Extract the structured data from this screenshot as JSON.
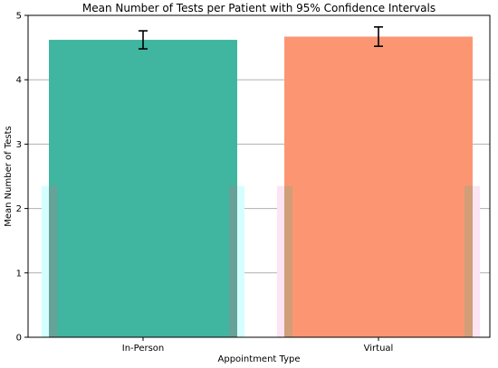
{
  "chart_data": {
    "type": "bar",
    "title": "Mean Number of Tests per Patient with 95% Confidence Intervals",
    "xlabel": "Appointment Type",
    "ylabel": "Mean Number of Tests",
    "categories": [
      "In-Person",
      "Virtual"
    ],
    "values": [
      4.62,
      4.67
    ],
    "ci_lower": [
      4.48,
      4.52
    ],
    "ci_upper": [
      4.76,
      4.82
    ],
    "ylim": [
      0,
      5
    ],
    "yticks": [
      "0",
      "1",
      "2",
      "3",
      "4",
      "5"
    ],
    "grid": "horizontal",
    "colors": {
      "bars": [
        "#40b5a0",
        "#fc9672"
      ],
      "background_bands": [
        "#d4ffff",
        "#fde4f3"
      ],
      "background_overlap": [
        "#6f9f98",
        "#c9a078"
      ],
      "gridline": "#b0b0b0",
      "errorbar": "#000000"
    }
  }
}
